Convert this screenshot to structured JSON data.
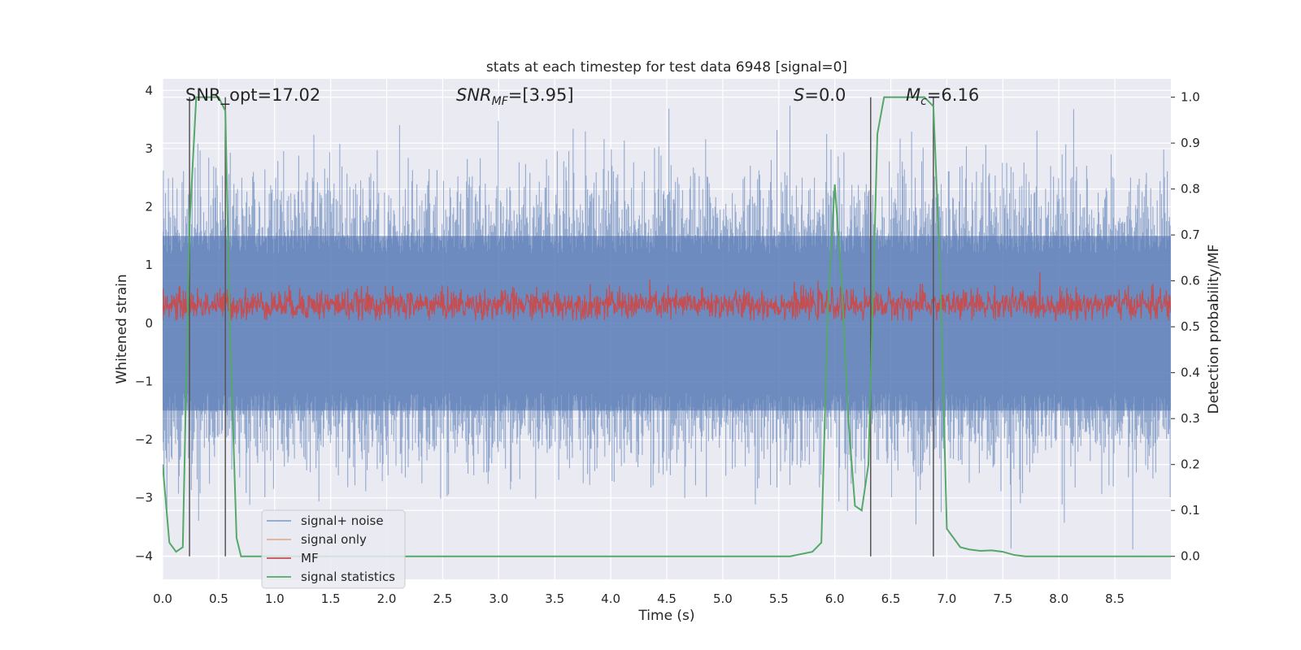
{
  "chart_data": {
    "type": "line",
    "title": "stats at each timestep for test data 6948 [signal=0]",
    "xlabel": "Time (s)",
    "ylabel_left": "Whitened strain",
    "ylabel_right": "Detection probability/MF",
    "xlim": [
      0.0,
      9.0
    ],
    "ylim_left": [
      -4.4,
      4.2
    ],
    "ylim_right": [
      -0.05,
      1.04
    ],
    "x_ticks": [
      "0.0",
      "0.5",
      "1.0",
      "1.5",
      "2.0",
      "2.5",
      "3.0",
      "3.5",
      "4.0",
      "4.5",
      "5.0",
      "5.5",
      "6.0",
      "6.5",
      "7.0",
      "7.5",
      "8.0",
      "8.5"
    ],
    "y_ticks_left": [
      "−4",
      "−3",
      "−2",
      "−1",
      "0",
      "1",
      "2",
      "3",
      "4"
    ],
    "y_ticks_right": [
      "0.0",
      "0.1",
      "0.2",
      "0.3",
      "0.4",
      "0.5",
      "0.6",
      "0.7",
      "0.8",
      "0.9",
      "1.0"
    ],
    "grid": true,
    "legend_position": "lower-left",
    "annotations": {
      "snr_opt": "SNR_opt=17.02",
      "snr_mf": "=[3.95]",
      "s_value": "=0.0",
      "mc_value": "=6.16"
    },
    "vertical_markers_s": [
      0.24,
      0.56,
      6.32,
      6.88
    ],
    "series": [
      {
        "name": "signal+ noise",
        "color": "#4c72b0",
        "axis": "left",
        "description_values": {
          "typical_range": [
            -2.5,
            2.5
          ],
          "max_peak": 3.95,
          "min_peak": -3.9
        }
      },
      {
        "name": "signal only",
        "color": "#dd8452",
        "axis": "left",
        "values": []
      },
      {
        "name": "MF",
        "color": "#c44e52",
        "axis": "left",
        "description_values": {
          "typical_range": [
            0.05,
            0.75
          ],
          "max_peak": 0.98
        }
      },
      {
        "name": "signal statistics",
        "color": "#55a868",
        "axis": "right",
        "x": [
          0.0,
          0.06,
          0.12,
          0.18,
          0.24,
          0.3,
          0.36,
          0.42,
          0.5,
          0.56,
          0.6,
          0.66,
          0.7,
          0.78,
          1.0,
          2.0,
          3.0,
          4.0,
          5.0,
          5.6,
          5.8,
          5.88,
          5.94,
          6.0,
          6.06,
          6.12,
          6.18,
          6.24,
          6.3,
          6.38,
          6.44,
          6.52,
          6.6,
          6.7,
          6.8,
          6.88,
          6.94,
          7.0,
          7.06,
          7.12,
          7.2,
          7.3,
          7.4,
          7.5,
          7.6,
          7.7,
          8.0,
          8.5,
          9.0
        ],
        "y": [
          0.2,
          0.03,
          0.01,
          0.02,
          0.72,
          1.0,
          1.0,
          1.0,
          1.0,
          0.97,
          0.5,
          0.04,
          0.0,
          0.0,
          0.0,
          0.0,
          0.0,
          0.0,
          0.0,
          0.0,
          0.01,
          0.03,
          0.55,
          0.81,
          0.6,
          0.3,
          0.11,
          0.1,
          0.2,
          0.92,
          1.0,
          1.0,
          1.0,
          1.0,
          1.0,
          0.98,
          0.62,
          0.06,
          0.04,
          0.02,
          0.015,
          0.012,
          0.013,
          0.01,
          0.003,
          0.0,
          0.0,
          0.0,
          0.0
        ]
      }
    ]
  }
}
